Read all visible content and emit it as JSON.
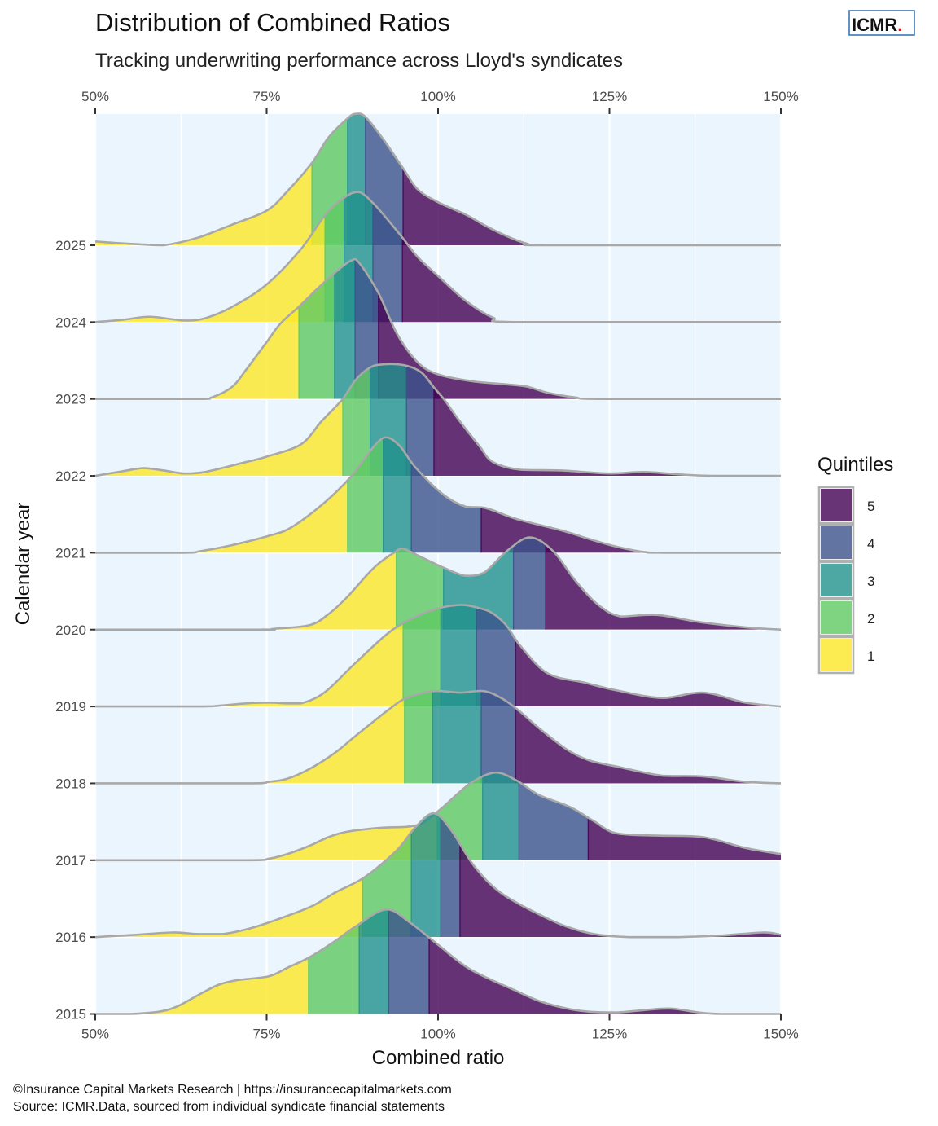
{
  "header": {
    "title": "Distribution of Combined Ratios",
    "subtitle": "Tracking underwriting performance across Lloyd's syndicates",
    "logo_text": "ICMR",
    "logo_dot": ".",
    "logo_dot_color": "#E0101A",
    "logo_border_color": "#2E6DB4"
  },
  "caption": {
    "line1": "©Insurance Capital Markets Research | https://insurancecapitalmarkets.com",
    "line2": "Source: ICMR.Data, sourced from individual syndicate financial statements"
  },
  "chart_data": {
    "type": "ridgeline",
    "title": "Distribution of Combined Ratios",
    "subtitle": "Tracking underwriting performance across Lloyd's syndicates",
    "xlabel": "Combined ratio",
    "ylabel": "Calendar year",
    "xlim": [
      50,
      150
    ],
    "x_ticks": [
      50,
      75,
      100,
      125,
      150
    ],
    "x_tick_labels": [
      "50%",
      "75%",
      "100%",
      "125%",
      "150%"
    ],
    "x_minor_ticks": [
      62.5,
      87.5,
      112.5,
      137.5
    ],
    "height_units": "ridge height relative to spacing between years",
    "legend": {
      "title": "Quintiles",
      "placement": "right",
      "entries": [
        "5",
        "4",
        "3",
        "2",
        "1"
      ],
      "colors": {
        "1": "#FDE725",
        "2": "#5EC962",
        "3": "#21918C",
        "4": "#3B528B",
        "5": "#440154"
      },
      "fill_opacity": 0.8
    },
    "outline_color": "#A8A8A8",
    "series": [
      {
        "year": "2025",
        "quintile_breaks": [
          81.6,
          86.8,
          89.4,
          94.9
        ],
        "density": [
          [
            50,
            0.05
          ],
          [
            53,
            0.03
          ],
          [
            57,
            0.01
          ],
          [
            60,
            0
          ],
          [
            65,
            0.1
          ],
          [
            70,
            0.27
          ],
          [
            75,
            0.45
          ],
          [
            78,
            0.7
          ],
          [
            81.6,
            1.07
          ],
          [
            84,
            1.4
          ],
          [
            86.8,
            1.65
          ],
          [
            88,
            1.71
          ],
          [
            89.4,
            1.67
          ],
          [
            92,
            1.38
          ],
          [
            94.9,
            1.0
          ],
          [
            97,
            0.73
          ],
          [
            100,
            0.56
          ],
          [
            104,
            0.4
          ],
          [
            107,
            0.25
          ],
          [
            110,
            0.12
          ],
          [
            113,
            0.02
          ],
          [
            116,
            0
          ],
          [
            150,
            0
          ]
        ]
      },
      {
        "year": "2024",
        "quintile_breaks": [
          83.5,
          86.3,
          90.5,
          94.8
        ],
        "density": [
          [
            50,
            0
          ],
          [
            54,
            0.03
          ],
          [
            58,
            0.07
          ],
          [
            63,
            0.02
          ],
          [
            66,
            0.05
          ],
          [
            70,
            0.2
          ],
          [
            75,
            0.49
          ],
          [
            80,
            0.95
          ],
          [
            83.5,
            1.39
          ],
          [
            86.3,
            1.62
          ],
          [
            88.5,
            1.69
          ],
          [
            90.5,
            1.55
          ],
          [
            92.5,
            1.35
          ],
          [
            94.8,
            1.1
          ],
          [
            97,
            0.85
          ],
          [
            100,
            0.6
          ],
          [
            104,
            0.28
          ],
          [
            108,
            0.06
          ],
          [
            112,
            0
          ],
          [
            150,
            0
          ]
        ]
      },
      {
        "year": "2023",
        "quintile_breaks": [
          79.7,
          84.9,
          87.9,
          91.3
        ],
        "density": [
          [
            50,
            0
          ],
          [
            65,
            0
          ],
          [
            67,
            0.02
          ],
          [
            70,
            0.16
          ],
          [
            72,
            0.38
          ],
          [
            75,
            0.74
          ],
          [
            77,
            0.98
          ],
          [
            79.7,
            1.2
          ],
          [
            82,
            1.4
          ],
          [
            84.9,
            1.64
          ],
          [
            87.3,
            1.8
          ],
          [
            88.5,
            1.77
          ],
          [
            91.3,
            1.38
          ],
          [
            94,
            0.85
          ],
          [
            97,
            0.48
          ],
          [
            100,
            0.32
          ],
          [
            105,
            0.23
          ],
          [
            110,
            0.19
          ],
          [
            113,
            0.16
          ],
          [
            116,
            0.08
          ],
          [
            120,
            0.02
          ],
          [
            124,
            0
          ],
          [
            150,
            0
          ]
        ]
      },
      {
        "year": "2022",
        "quintile_breaks": [
          86.1,
          90.1,
          95.4,
          99.4
        ],
        "density": [
          [
            50,
            0
          ],
          [
            54,
            0.06
          ],
          [
            57,
            0.1
          ],
          [
            60,
            0.07
          ],
          [
            63,
            0.03
          ],
          [
            66,
            0.05
          ],
          [
            72,
            0.18
          ],
          [
            75,
            0.25
          ],
          [
            80,
            0.41
          ],
          [
            83,
            0.71
          ],
          [
            86.1,
            1.0
          ],
          [
            88,
            1.25
          ],
          [
            90.1,
            1.41
          ],
          [
            92,
            1.45
          ],
          [
            95,
            1.44
          ],
          [
            97.5,
            1.35
          ],
          [
            99.4,
            1.15
          ],
          [
            101,
            0.98
          ],
          [
            103,
            0.73
          ],
          [
            106,
            0.39
          ],
          [
            108,
            0.18
          ],
          [
            112,
            0.08
          ],
          [
            118,
            0.07
          ],
          [
            125,
            0.03
          ],
          [
            130,
            0.05
          ],
          [
            135,
            0.02
          ],
          [
            140,
            0
          ],
          [
            150,
            0
          ]
        ]
      },
      {
        "year": "2021",
        "quintile_breaks": [
          86.8,
          92.0,
          96.1,
          106.3
        ],
        "density": [
          [
            50,
            0
          ],
          [
            63,
            0
          ],
          [
            65.3,
            0.02
          ],
          [
            70,
            0.1
          ],
          [
            75.3,
            0.22
          ],
          [
            78.6,
            0.33
          ],
          [
            83.4,
            0.65
          ],
          [
            87.3,
            0.99
          ],
          [
            90.7,
            1.39
          ],
          [
            92.5,
            1.5
          ],
          [
            94.5,
            1.38
          ],
          [
            96.7,
            1.11
          ],
          [
            100.7,
            0.76
          ],
          [
            104,
            0.6
          ],
          [
            107,
            0.58
          ],
          [
            111.4,
            0.44
          ],
          [
            118,
            0.29
          ],
          [
            122,
            0.18
          ],
          [
            126,
            0.08
          ],
          [
            130,
            0.01
          ],
          [
            133,
            0
          ],
          [
            150,
            0
          ]
        ]
      },
      {
        "year": "2020",
        "quintile_breaks": [
          93.9,
          100.8,
          111.0,
          115.7
        ],
        "density": [
          [
            50,
            0
          ],
          [
            74,
            0
          ],
          [
            76,
            0.01
          ],
          [
            81.3,
            0.06
          ],
          [
            84,
            0.2
          ],
          [
            86.7,
            0.42
          ],
          [
            90.7,
            0.81
          ],
          [
            93.9,
            1.02
          ],
          [
            95,
            1.05
          ],
          [
            97.4,
            0.95
          ],
          [
            100.7,
            0.81
          ],
          [
            104,
            0.7
          ],
          [
            106.7,
            0.74
          ],
          [
            110,
            1.02
          ],
          [
            113.4,
            1.2
          ],
          [
            116.8,
            1.02
          ],
          [
            120,
            0.64
          ],
          [
            123.4,
            0.32
          ],
          [
            126.7,
            0.17
          ],
          [
            132,
            0.19
          ],
          [
            138,
            0.1
          ],
          [
            144.8,
            0.03
          ],
          [
            150,
            0
          ]
        ]
      },
      {
        "year": "2019",
        "quintile_breaks": [
          94.9,
          100.4,
          105.6,
          111.3
        ],
        "density": [
          [
            50,
            0
          ],
          [
            65,
            0
          ],
          [
            68,
            0.01
          ],
          [
            72,
            0.04
          ],
          [
            75.3,
            0.05
          ],
          [
            78,
            0.04
          ],
          [
            80,
            0.04
          ],
          [
            83.4,
            0.18
          ],
          [
            88,
            0.57
          ],
          [
            93.4,
            1.0
          ],
          [
            98.7,
            1.24
          ],
          [
            103,
            1.32
          ],
          [
            106,
            1.28
          ],
          [
            108,
            1.21
          ],
          [
            110,
            1.05
          ],
          [
            112,
            0.79
          ],
          [
            116,
            0.43
          ],
          [
            121.4,
            0.31
          ],
          [
            126,
            0.21
          ],
          [
            132.7,
            0.11
          ],
          [
            138.7,
            0.18
          ],
          [
            144.8,
            0.05
          ],
          [
            150,
            0
          ]
        ]
      },
      {
        "year": "2018",
        "quintile_breaks": [
          95.1,
          99.2,
          106.3,
          111.3
        ],
        "density": [
          [
            50,
            0
          ],
          [
            72,
            0
          ],
          [
            75.3,
            0.02
          ],
          [
            78,
            0.06
          ],
          [
            81.3,
            0.19
          ],
          [
            85,
            0.4
          ],
          [
            88,
            0.62
          ],
          [
            93.4,
            1.0
          ],
          [
            95.7,
            1.12
          ],
          [
            99.4,
            1.2
          ],
          [
            103.3,
            1.18
          ],
          [
            106.7,
            1.2
          ],
          [
            109.4,
            1.1
          ],
          [
            112,
            0.93
          ],
          [
            114.7,
            0.72
          ],
          [
            118.8,
            0.44
          ],
          [
            122,
            0.3
          ],
          [
            126,
            0.22
          ],
          [
            132.7,
            0.1
          ],
          [
            138.7,
            0.09
          ],
          [
            144.8,
            0.02
          ],
          [
            150,
            0
          ]
        ]
      },
      {
        "year": "2017",
        "quintile_breaks": [
          99.9,
          106.5,
          111.8,
          121.9
        ],
        "density": [
          [
            50,
            0
          ],
          [
            72,
            0
          ],
          [
            75.3,
            0.02
          ],
          [
            78,
            0.08
          ],
          [
            81.3,
            0.19
          ],
          [
            84,
            0.3
          ],
          [
            86.7,
            0.37
          ],
          [
            91.3,
            0.42
          ],
          [
            95.9,
            0.44
          ],
          [
            98,
            0.5
          ],
          [
            100.7,
            0.69
          ],
          [
            104.7,
            1.0
          ],
          [
            108.3,
            1.14
          ],
          [
            111.4,
            1.04
          ],
          [
            114.7,
            0.85
          ],
          [
            119.3,
            0.69
          ],
          [
            122.7,
            0.51
          ],
          [
            126,
            0.35
          ],
          [
            132,
            0.32
          ],
          [
            138.7,
            0.3
          ],
          [
            144.8,
            0.16
          ],
          [
            150,
            0.08
          ]
        ]
      },
      {
        "year": "2016",
        "quintile_breaks": [
          89.0,
          96.1,
          100.4,
          103.2
        ],
        "density": [
          [
            50,
            0
          ],
          [
            56,
            0.03
          ],
          [
            61.3,
            0.06
          ],
          [
            65,
            0.04
          ],
          [
            68.6,
            0.04
          ],
          [
            72,
            0.1
          ],
          [
            75.3,
            0.19
          ],
          [
            81.3,
            0.39
          ],
          [
            85,
            0.58
          ],
          [
            89.3,
            0.78
          ],
          [
            94,
            1.13
          ],
          [
            96.7,
            1.43
          ],
          [
            99.4,
            1.61
          ],
          [
            102,
            1.38
          ],
          [
            105.3,
            0.92
          ],
          [
            109.4,
            0.56
          ],
          [
            116,
            0.24
          ],
          [
            120,
            0.1
          ],
          [
            123.4,
            0.03
          ],
          [
            128,
            0
          ],
          [
            135,
            0
          ],
          [
            141.3,
            0.02
          ],
          [
            147.4,
            0.06
          ],
          [
            150,
            0.03
          ]
        ]
      },
      {
        "year": "2015",
        "quintile_breaks": [
          81.1,
          88.5,
          92.8,
          98.7
        ],
        "density": [
          [
            50,
            0
          ],
          [
            55,
            0
          ],
          [
            59.3,
            0.03
          ],
          [
            62,
            0.1
          ],
          [
            65.3,
            0.26
          ],
          [
            68,
            0.38
          ],
          [
            70.7,
            0.44
          ],
          [
            75.3,
            0.49
          ],
          [
            78,
            0.6
          ],
          [
            81.3,
            0.74
          ],
          [
            85,
            0.95
          ],
          [
            88,
            1.14
          ],
          [
            92.4,
            1.36
          ],
          [
            95.9,
            1.19
          ],
          [
            100,
            0.9
          ],
          [
            104.7,
            0.58
          ],
          [
            111.4,
            0.3
          ],
          [
            115,
            0.16
          ],
          [
            118.8,
            0.07
          ],
          [
            122,
            0.03
          ],
          [
            126,
            0.02
          ],
          [
            130,
            0.05
          ],
          [
            134,
            0.07
          ],
          [
            138,
            0.02
          ],
          [
            141.3,
            0
          ],
          [
            150,
            0
          ]
        ]
      }
    ]
  }
}
